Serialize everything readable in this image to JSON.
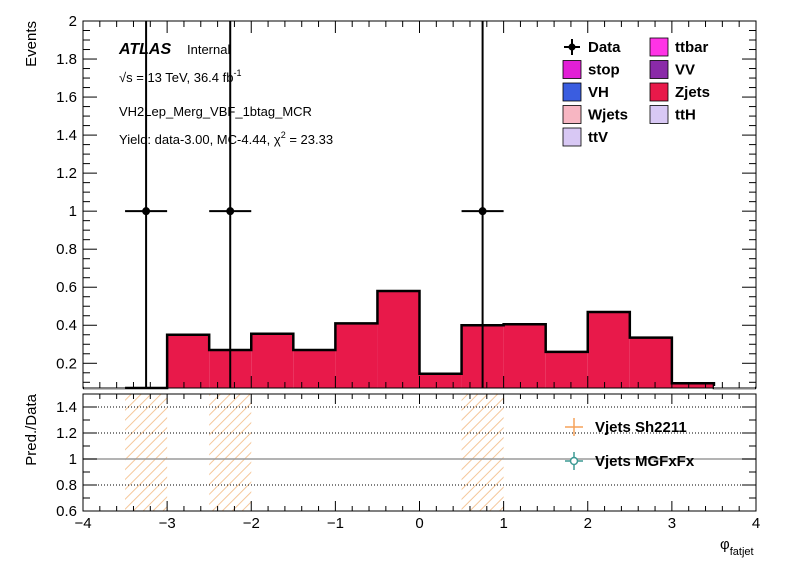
{
  "chart_data": [
    {
      "type": "bar",
      "panel": "main",
      "ylabel": "Events",
      "ylim": [
        0.07,
        2
      ],
      "yticks": [
        0.2,
        0.4,
        0.6,
        0.8,
        1,
        1.2,
        1.4,
        1.6,
        1.8,
        2
      ],
      "ytick_labels": [
        "0.2",
        "0.4",
        "0.6",
        "0.8",
        "1",
        "1.2",
        "1.4",
        "1.6",
        "1.8",
        "2"
      ],
      "xlim": [
        -4,
        4
      ],
      "bin_edges": [
        -4.0,
        -3.5,
        -3.0,
        -2.5,
        -2.0,
        -1.5,
        -1.0,
        -0.5,
        0.0,
        0.5,
        1.0,
        1.5,
        2.0,
        2.5,
        3.0,
        3.5,
        4.0
      ],
      "series": [
        {
          "name": "Zjets",
          "color": "#e8194a",
          "values": [
            0,
            0,
            0.35,
            0.27,
            0.355,
            0.27,
            0.41,
            0.58,
            0.145,
            0.4,
            0.405,
            0.26,
            0.47,
            0.335,
            0.095,
            0
          ]
        }
      ],
      "data_points": {
        "name": "Data",
        "x": [
          -3.25,
          -2.25,
          0.75
        ],
        "y": [
          1,
          1,
          1
        ],
        "xerr": 0.25,
        "yerr_up": 1.0,
        "yerr_down": 1.0
      },
      "legend": {
        "placement": "top-right",
        "entries": [
          {
            "label": "Data",
            "kind": "marker",
            "color": "#000000"
          },
          {
            "label": "ttbar",
            "kind": "box",
            "color": "#ff33e6"
          },
          {
            "label": "stop",
            "kind": "box",
            "color": "#e21fd6"
          },
          {
            "label": "VV",
            "kind": "box",
            "color": "#8a2aa8"
          },
          {
            "label": "VH",
            "kind": "box",
            "color": "#3a5de0"
          },
          {
            "label": "Zjets",
            "kind": "box",
            "color": "#e8194a"
          },
          {
            "label": "Wjets",
            "kind": "box",
            "color": "#f7b6c2"
          },
          {
            "label": "ttH",
            "kind": "box",
            "color": "#d8c8f4"
          },
          {
            "label": "ttV",
            "kind": "box",
            "color": "#d8c8f4"
          }
        ]
      },
      "annotations": {
        "atlas": "ATLAS",
        "internal": "Internal",
        "energy_prefix": "√s = 13 TeV, 36.4 fb",
        "energy_sup": "-1",
        "region": "VH2Lep_Merg_VBF_1btag_MCR",
        "yield_prefix": "Yield: data-3.00, MC-4.44, χ",
        "yield_sup": "2",
        "yield_suffix": " = 23.33"
      }
    },
    {
      "type": "scatter",
      "panel": "ratio",
      "ylabel": "Pred./Data",
      "ylim": [
        0.6,
        1.5
      ],
      "yticks": [
        0.6,
        0.8,
        1,
        1.2,
        1.4
      ],
      "ytick_labels": [
        "0.6",
        "0.8",
        "1",
        "1.2",
        "1.4"
      ],
      "xlabel": "φ",
      "xlabel_sub": "fatjet",
      "xlim": [
        -4,
        4
      ],
      "xticks": [
        -4,
        -3,
        -2,
        -1,
        0,
        1,
        2,
        3,
        4
      ],
      "xtick_labels": [
        "−4",
        "−3",
        "−2",
        "−1",
        "0",
        "1",
        "2",
        "3",
        "4"
      ],
      "hatched_bins": [
        [
          -3.5,
          -3.0
        ],
        [
          -2.5,
          -2.0
        ],
        [
          0.5,
          1.0
        ]
      ],
      "hatch_range": [
        0.6,
        1.5
      ],
      "legend": {
        "placement": "right",
        "entries": [
          {
            "label": "Vjets Sh2211",
            "color": "#f5a25a"
          },
          {
            "label": "Vjets MGFxFx",
            "color": "#3d9a94"
          }
        ]
      }
    }
  ]
}
